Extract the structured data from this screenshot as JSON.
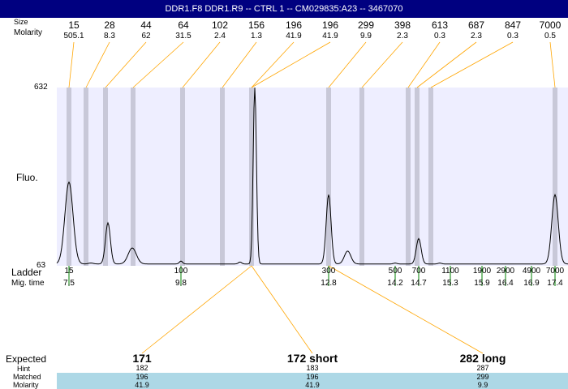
{
  "title": "DDR1.F8  DDR1.R9 -- CTRL 1 -- CM029835:A23 -- 3467070",
  "labels": {
    "size": "Size",
    "molarity": "Molarity",
    "fluo": "Fluo.",
    "ladder": "Ladder",
    "mig_time": "Mig. time",
    "expected": "Expected",
    "hint": "Hint",
    "matched": "Matched",
    "molarity_bottom": "Molarity"
  },
  "top_peaks": [
    {
      "size": "15",
      "molarity": "505.1"
    },
    {
      "size": "28",
      "molarity": "8.3"
    },
    {
      "size": "44",
      "molarity": "62"
    },
    {
      "size": "64",
      "molarity": "31.5"
    },
    {
      "size": "102",
      "molarity": "2.4"
    },
    {
      "size": "156",
      "molarity": "1.3"
    },
    {
      "size": "196",
      "molarity": "41.9"
    },
    {
      "size": "196",
      "molarity": "41.9"
    },
    {
      "size": "299",
      "molarity": "9.9"
    },
    {
      "size": "398",
      "molarity": "2.3"
    },
    {
      "size": "613",
      "molarity": "0.3"
    },
    {
      "size": "687",
      "molarity": "2.3"
    },
    {
      "size": "847",
      "molarity": "0.3"
    },
    {
      "size": "7000",
      "molarity": "0.5"
    }
  ],
  "ladder": [
    {
      "size": "15",
      "time": "7.5"
    },
    {
      "size": "100",
      "time": "9.8"
    },
    {
      "size": "300",
      "time": "12.8"
    },
    {
      "size": "500",
      "time": "14.2"
    },
    {
      "size": "700",
      "time": "14.7"
    },
    {
      "size": "1100",
      "time": "15.3"
    },
    {
      "size": "1900",
      "time": "15.9"
    },
    {
      "size": "2900",
      "time": "16.4"
    },
    {
      "size": "4900",
      "time": "16.9"
    },
    {
      "size": "7000",
      "time": "17.4"
    }
  ],
  "expected": [
    {
      "label": "171",
      "hint": "182",
      "matched": "196",
      "molarity": "41.9"
    },
    {
      "label": "172 short",
      "hint": "183",
      "matched": "196",
      "molarity": "41.9"
    },
    {
      "label": "282 long",
      "hint": "287",
      "matched": "299",
      "molarity": "9.9"
    }
  ],
  "colors": {
    "title_bg": "#000080",
    "plot_bg": "#eeeeff",
    "band": "#c8c8d8",
    "connector": "#ffa500",
    "ladder_tick": "#008000",
    "row_bg": "#add8e6"
  },
  "chart_data": {
    "type": "line",
    "title": "DDR1.F8  DDR1.R9 -- CTRL 1 -- CM029835:A23 -- 3467070",
    "xlabel": "Mig. time",
    "ylabel": "Fluo.",
    "ylim": [
      63,
      632
    ],
    "xlim": [
      6.8,
      17.5
    ],
    "y_ticks": [
      "632",
      "63"
    ],
    "baseline": 69,
    "peaks": [
      {
        "size": 15,
        "time": 7.5,
        "height": 330
      },
      {
        "size": 28,
        "time": 7.95,
        "height": 72
      },
      {
        "size": 44,
        "time": 8.3,
        "height": 200
      },
      {
        "size": 64,
        "time": 8.8,
        "height": 120
      },
      {
        "size": 102,
        "time": 9.8,
        "height": 78
      },
      {
        "size": 156,
        "time": 11.0,
        "height": 75
      },
      {
        "size": 196,
        "time": 11.3,
        "height": 632
      },
      {
        "size": 299,
        "time": 12.8,
        "height": 290
      },
      {
        "size": 398,
        "time": 13.2,
        "height": 110
      },
      {
        "size": 613,
        "time": 14.2,
        "height": 72
      },
      {
        "size": 687,
        "time": 14.7,
        "height": 150
      },
      {
        "size": 847,
        "time": 15.1,
        "height": 72
      },
      {
        "size": 7000,
        "time": 17.4,
        "height": 290
      }
    ]
  }
}
